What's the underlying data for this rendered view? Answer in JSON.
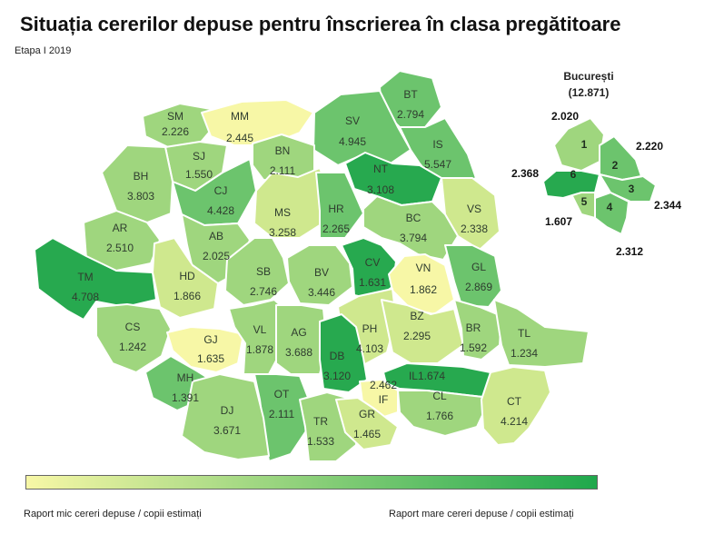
{
  "title": "Situația cererilor depuse pentru înscrierea în clasa pregătitoare",
  "subtitle": "Etapa I 2019",
  "colors": {
    "scale": [
      "#f7f7a6",
      "#cfe88e",
      "#9fd67e",
      "#6cc46d",
      "#27a94f"
    ],
    "legend_low": "#f7f7a6",
    "legend_high": "#1fa84c"
  },
  "legend": {
    "low_label": "Raport mic cereri depuse / copii estimați",
    "high_label": "Raport mare cereri depuse / copii estimați"
  },
  "counties": [
    {
      "code": "SM",
      "value": "2.226",
      "level": 2
    },
    {
      "code": "MM",
      "value": "2.445",
      "level": 0
    },
    {
      "code": "BT",
      "value": "2.794",
      "level": 3
    },
    {
      "code": "SV",
      "value": "4.945",
      "level": 3
    },
    {
      "code": "IS",
      "value": "5.547",
      "level": 3
    },
    {
      "code": "BN",
      "value": "2.111",
      "level": 2
    },
    {
      "code": "SJ",
      "value": "1.550",
      "level": 2
    },
    {
      "code": "BH",
      "value": "3.803",
      "level": 2
    },
    {
      "code": "CJ",
      "value": "4.428",
      "level": 3
    },
    {
      "code": "NT",
      "value": "3.108",
      "level": 4
    },
    {
      "code": "MS",
      "value": "3.258",
      "level": 1
    },
    {
      "code": "HR",
      "value": "2.265",
      "level": 3
    },
    {
      "code": "VS",
      "value": "2.338",
      "level": 1
    },
    {
      "code": "AR",
      "value": "2.510",
      "level": 2
    },
    {
      "code": "AB",
      "value": "2.025",
      "level": 2
    },
    {
      "code": "BC",
      "value": "3.794",
      "level": 2
    },
    {
      "code": "TM",
      "value": "4.708",
      "level": 4
    },
    {
      "code": "HD",
      "value": "1.866",
      "level": 1
    },
    {
      "code": "SB",
      "value": "2.746",
      "level": 2
    },
    {
      "code": "BV",
      "value": "3.446",
      "level": 2
    },
    {
      "code": "CV",
      "value": "1.631",
      "level": 4
    },
    {
      "code": "VN",
      "value": "1.862",
      "level": 0
    },
    {
      "code": "GL",
      "value": "2.869",
      "level": 3
    },
    {
      "code": "CS",
      "value": "1.242",
      "level": 2
    },
    {
      "code": "GJ",
      "value": "1.635",
      "level": 0
    },
    {
      "code": "VL",
      "value": "1.878",
      "level": 2
    },
    {
      "code": "AG",
      "value": "3.688",
      "level": 2
    },
    {
      "code": "PH",
      "value": "4.103",
      "level": 1
    },
    {
      "code": "BZ",
      "value": "2.295",
      "level": 1
    },
    {
      "code": "BR",
      "value": "1.592",
      "level": 2
    },
    {
      "code": "TL",
      "value": "1.234",
      "level": 2
    },
    {
      "code": "MH",
      "value": "1.391",
      "level": 3
    },
    {
      "code": "DB",
      "value": "3.120",
      "level": 4
    },
    {
      "code": "IL",
      "value": "1.674",
      "level": 4
    },
    {
      "code": "OT",
      "value": "2.111",
      "level": 3
    },
    {
      "code": "IF",
      "value": "2.462",
      "level": 0
    },
    {
      "code": "CL",
      "value": "1.766",
      "level": 2
    },
    {
      "code": "DJ",
      "value": "3.671",
      "level": 2
    },
    {
      "code": "TR",
      "value": "1.533",
      "level": 2
    },
    {
      "code": "GR",
      "value": "1.465",
      "level": 1
    },
    {
      "code": "CT",
      "value": "4.214",
      "level": 1
    }
  ],
  "bucuresti": {
    "name": "București",
    "total": "(12.871)",
    "sectors": [
      {
        "num": "1",
        "value": "2.020",
        "level": 2
      },
      {
        "num": "2",
        "value": "2.220",
        "level": 3
      },
      {
        "num": "3",
        "value": "2.344",
        "level": 3
      },
      {
        "num": "4",
        "value": "2.312",
        "level": 3
      },
      {
        "num": "5",
        "value": "1.607",
        "level": 2
      },
      {
        "num": "6",
        "value": "2.368",
        "level": 4
      }
    ]
  }
}
